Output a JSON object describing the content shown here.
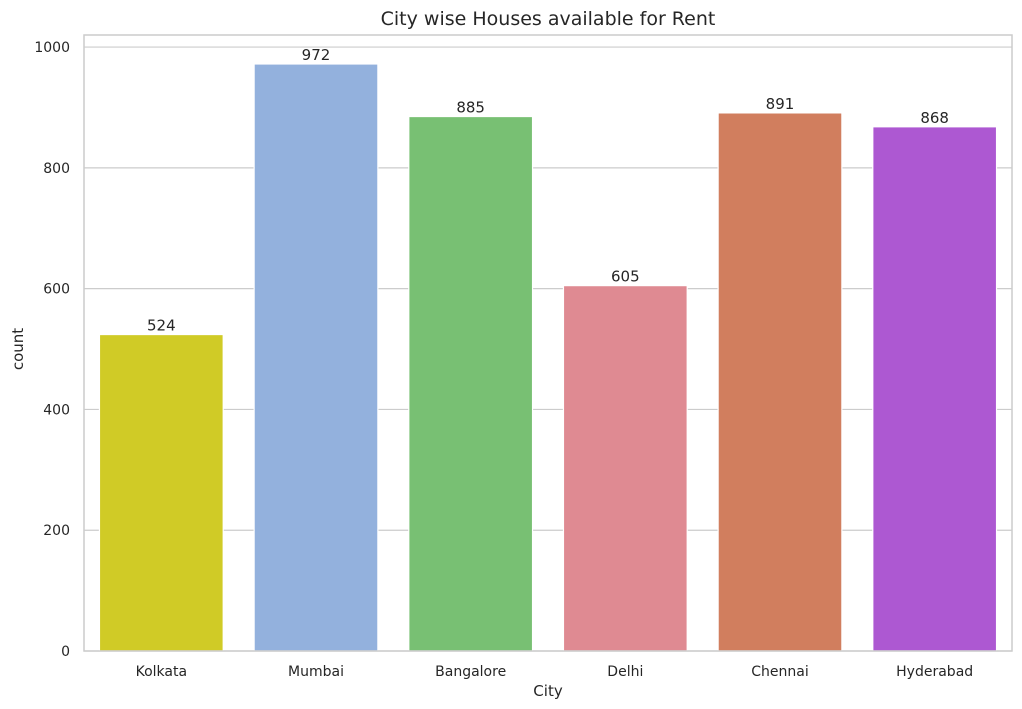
{
  "chart_data": {
    "type": "bar",
    "title": "City wise Houses available for Rent",
    "xlabel": "City",
    "ylabel": "count",
    "categories": [
      "Kolkata",
      "Mumbai",
      "Bangalore",
      "Delhi",
      "Chennai",
      "Hyderabad"
    ],
    "values": [
      524,
      972,
      885,
      605,
      891,
      868
    ],
    "data_labels": [
      "524",
      "972",
      "885",
      "605",
      "891",
      "868"
    ],
    "colors": [
      "#d0cb26",
      "#93b1dd",
      "#78c073",
      "#df8a92",
      "#d17e5e",
      "#ad58d2"
    ],
    "ylim": [
      0,
      1020
    ],
    "yticks": [
      0,
      200,
      400,
      600,
      800,
      1000
    ],
    "ytick_labels": [
      "0",
      "200",
      "400",
      "600",
      "800",
      "1000"
    ],
    "grid": true,
    "grid_axis": "y",
    "legend": "none"
  }
}
